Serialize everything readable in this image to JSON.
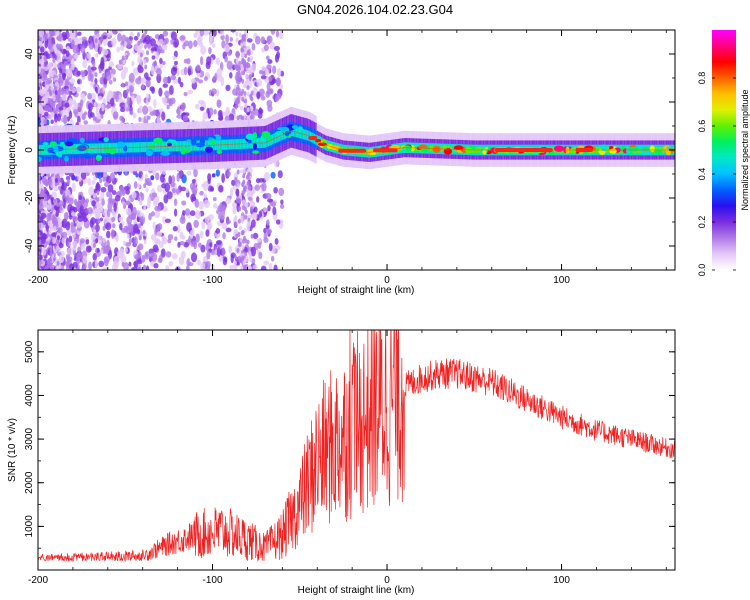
{
  "title": "GN04.2026.104.02.23.G04",
  "chart_data": [
    {
      "type": "heatmap",
      "name": "spectrogram",
      "xlabel": "Height of straight line (km)",
      "ylabel": "Frequency (Hz)",
      "xlim": [
        -200,
        165
      ],
      "ylim": [
        -50,
        50
      ],
      "xticks": [
        -200,
        -100,
        0,
        100
      ],
      "xtick_labels": [
        "-200",
        "-100",
        "0",
        "100"
      ],
      "yticks": [
        -40,
        -20,
        0,
        20,
        40
      ],
      "ytick_labels": [
        "-40",
        "-20",
        "0",
        "20",
        "40"
      ],
      "colorbar": {
        "label": "Normalized spectral amplitude",
        "range": [
          0,
          1
        ],
        "ticks": [
          0.0,
          0.2,
          0.4,
          0.6,
          0.8
        ],
        "tick_labels": [
          "0.0",
          "0.2",
          "0.4",
          "0.6",
          "0.8"
        ],
        "colors": [
          "#ffffff",
          "#e4c8f7",
          "#b07ae8",
          "#7b2ee0",
          "#2a10f0",
          "#0060ff",
          "#00c0ff",
          "#00e8c8",
          "#00f060",
          "#60f000",
          "#e0f000",
          "#ffc000",
          "#ff6000",
          "#ff0000",
          "#ff0080",
          "#ff00ff"
        ]
      },
      "ridge": {
        "description": "Dominant frequency ridge near 0 Hz",
        "x": [
          -200,
          -150,
          -100,
          -70,
          -55,
          -45,
          -35,
          -25,
          -10,
          0,
          10,
          50,
          100,
          140,
          165
        ],
        "y": [
          0,
          1,
          2,
          3,
          8,
          6,
          2,
          0,
          -1,
          0,
          1,
          0,
          0,
          0,
          0
        ]
      }
    },
    {
      "type": "line",
      "name": "snr",
      "xlabel": "Height of straight line (km)",
      "ylabel": "SNR (10 * v/v)",
      "xlim": [
        -200,
        165
      ],
      "ylim": [
        0,
        5500
      ],
      "xticks": [
        -200,
        -100,
        0,
        100
      ],
      "xtick_labels": [
        "-200",
        "-100",
        "0",
        "100"
      ],
      "yticks": [
        1000,
        2000,
        3000,
        4000,
        5000
      ],
      "ytick_labels": [
        "1000",
        "2000",
        "3000",
        "4000",
        "5000"
      ],
      "color": "#ee2222",
      "series": [
        {
          "name": "SNR envelope",
          "x": [
            -200,
            -170,
            -140,
            -125,
            -110,
            -95,
            -80,
            -70,
            -60,
            -50,
            -40,
            -30,
            -20,
            -10,
            0,
            10,
            20,
            30,
            40,
            50,
            60,
            80,
            100,
            120,
            140,
            165
          ],
          "y": [
            250,
            280,
            320,
            600,
            800,
            900,
            700,
            500,
            800,
            1500,
            2500,
            2900,
            3200,
            3600,
            3900,
            4200,
            4400,
            4500,
            4500,
            4400,
            4300,
            3900,
            3500,
            3200,
            3000,
            2750
          ]
        }
      ]
    }
  ]
}
